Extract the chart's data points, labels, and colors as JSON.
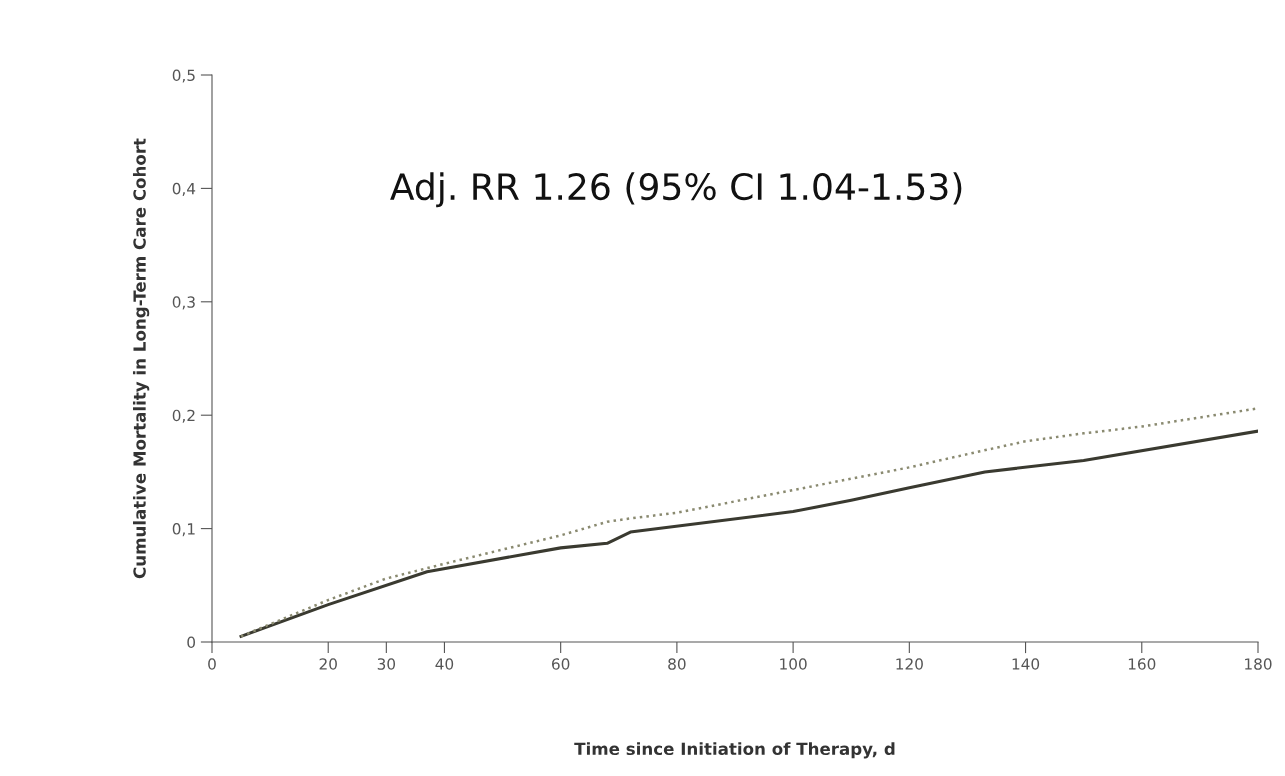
{
  "chart_data": {
    "type": "line",
    "xlabel": "Time since Initiation of Therapy, d",
    "ylabel": "Cumulative Mortality in Long-Term Care Cohort",
    "annotations": [
      "Adj. RR 1.26 (95% CI 1.04-1.53)"
    ],
    "series": [
      {
        "color": "#3a3a30",
        "line_style": "solid",
        "x": [
          5,
          20,
          37,
          60,
          68,
          72,
          100,
          110,
          120,
          133,
          150,
          180
        ],
        "values": [
          0.005,
          0.033,
          0.062,
          0.083,
          0.087,
          0.097,
          0.115,
          0.125,
          0.136,
          0.15,
          0.16,
          0.186
        ]
      },
      {
        "color": "#8a8a70",
        "line_style": "dotted",
        "x": [
          5,
          20,
          30,
          40,
          60,
          68,
          72,
          80,
          100,
          120,
          132,
          140,
          150,
          160,
          180
        ],
        "values": [
          0.005,
          0.037,
          0.056,
          0.069,
          0.094,
          0.106,
          0.109,
          0.114,
          0.134,
          0.154,
          0.168,
          0.177,
          0.184,
          0.19,
          0.206
        ]
      }
    ],
    "xlim": [
      0,
      180
    ],
    "xticks": [
      0,
      20,
      30,
      40,
      60,
      80,
      100,
      120,
      140,
      160,
      180
    ],
    "ylim": [
      0,
      0.5
    ],
    "yticks": [
      {
        "value": 0,
        "label": "0"
      },
      {
        "value": 0.1,
        "label": "0,1"
      },
      {
        "value": 0.2,
        "label": "0,2"
      },
      {
        "value": 0.3,
        "label": "0,3"
      },
      {
        "value": 0.4,
        "label": "0,4"
      },
      {
        "value": 0.5,
        "label": "0,5"
      }
    ],
    "grid": false,
    "legend": false,
    "marker": "none"
  }
}
